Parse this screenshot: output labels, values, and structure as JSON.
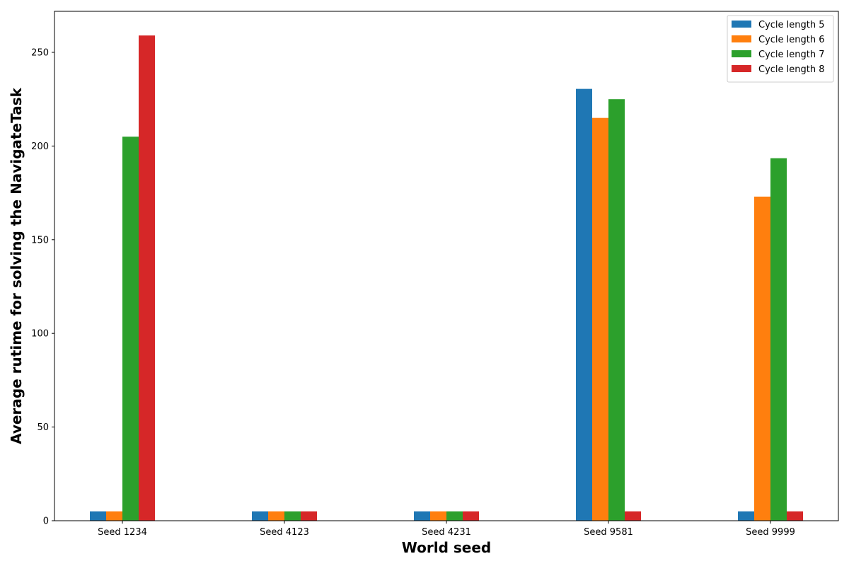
{
  "chart_data": {
    "type": "bar",
    "title": "",
    "xlabel": "World seed",
    "ylabel": "Average rutime for solving the NavigateTask",
    "categories": [
      "Seed 1234",
      "Seed 4123",
      "Seed 4231",
      "Seed 9581",
      "Seed 9999"
    ],
    "series": [
      {
        "name": "Cycle length 5",
        "color": "#1f77b4",
        "values": [
          5,
          5,
          5,
          230.5,
          5
        ]
      },
      {
        "name": "Cycle length 6",
        "color": "#ff7f0e",
        "values": [
          5,
          5,
          5,
          215,
          173
        ]
      },
      {
        "name": "Cycle length 7",
        "color": "#2ca02c",
        "values": [
          205,
          5,
          5,
          225,
          193.5
        ]
      },
      {
        "name": "Cycle length 8",
        "color": "#d62728",
        "values": [
          259,
          5,
          5,
          5,
          5
        ]
      }
    ],
    "ylim": [
      0,
      271.9
    ],
    "yticks": [
      0,
      50,
      100,
      150,
      200,
      250
    ],
    "grid": false,
    "legend_position": "top-right"
  }
}
